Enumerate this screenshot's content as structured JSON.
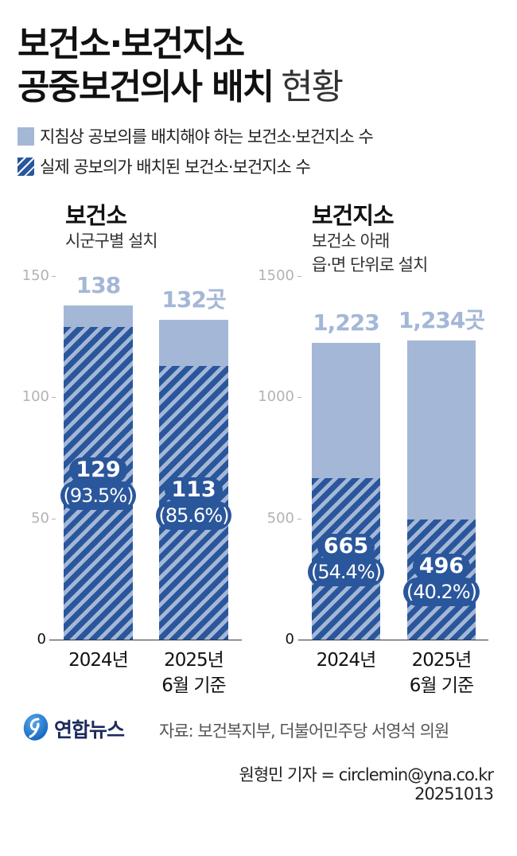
{
  "title": {
    "line1": "보건소·보건지소",
    "line2_bold": "공중보건의사 배치",
    "line2_light": "현황"
  },
  "legend": [
    {
      "label": "지침상 공보의를 배치해야 하는 보건소·보건지소 수",
      "swatch": "solid"
    },
    {
      "label": "실제 공보의가 배치된 보건소·보건지소 수",
      "swatch": "hatched"
    }
  ],
  "colors": {
    "required": "#a4b7d7",
    "actual": "#2a569b",
    "axis_tick": "#b3b3b3",
    "logo_text": "#1c2a5c"
  },
  "panels": [
    {
      "title": "보건소",
      "subtitle_lines": [
        "시군구별 설치"
      ]
    },
    {
      "title": "보건지소",
      "subtitle_lines": [
        "보건소 아래",
        "읍·면 단위로 설치"
      ]
    }
  ],
  "chart_data": [
    {
      "type": "bar",
      "title": "보건소",
      "subtitle": "시군구별 설치",
      "categories": [
        "2024년",
        "2025년 6월 기준"
      ],
      "category_lines": [
        [
          "2024년",
          ""
        ],
        [
          "2025년",
          "6월 기준"
        ]
      ],
      "series": [
        {
          "name": "지침상 공보의를 배치해야 하는 보건소·보건지소 수",
          "values": [
            138,
            132
          ],
          "labels": [
            "138",
            "132곳"
          ]
        },
        {
          "name": "실제 공보의가 배치된 보건소·보건지소 수",
          "values": [
            129,
            113
          ],
          "labels": [
            "129",
            "113"
          ],
          "percent_labels": [
            "(93.5%)",
            "(85.6%)"
          ]
        }
      ],
      "yticks": [
        0,
        50,
        100,
        150
      ],
      "ylim": [
        0,
        150
      ],
      "xlabel": "",
      "ylabel": "",
      "grid": false,
      "legend_position": "top"
    },
    {
      "type": "bar",
      "title": "보건지소",
      "subtitle": "보건소 아래 읍·면 단위로 설치",
      "categories": [
        "2024년",
        "2025년 6월 기준"
      ],
      "category_lines": [
        [
          "2024년",
          ""
        ],
        [
          "2025년",
          "6월 기준"
        ]
      ],
      "series": [
        {
          "name": "지침상 공보의를 배치해야 하는 보건소·보건지소 수",
          "values": [
            1223,
            1234
          ],
          "labels": [
            "1,223",
            "1,234곳"
          ]
        },
        {
          "name": "실제 공보의가 배치된 보건소·보건지소 수",
          "values": [
            665,
            496
          ],
          "labels": [
            "665",
            "496"
          ],
          "percent_labels": [
            "(54.4%)",
            "(40.2%)"
          ]
        }
      ],
      "yticks": [
        0,
        500,
        1000,
        1500
      ],
      "ylim": [
        0,
        1500
      ],
      "xlabel": "",
      "ylabel": "",
      "grid": false,
      "legend_position": "top"
    }
  ],
  "footer": {
    "logo_text": "연합뉴스",
    "source": "자료: 보건복지부, 더불어민주당 서영석 의원",
    "byline": "원형민 기자 = circlemin@yna.co.kr",
    "date": "20251013"
  }
}
